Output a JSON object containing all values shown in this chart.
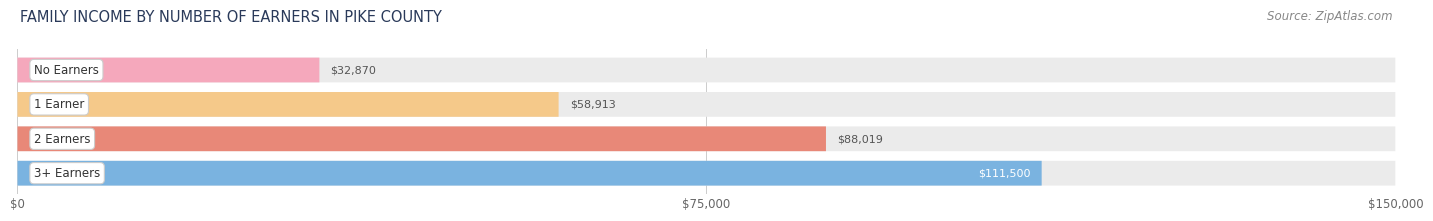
{
  "title": "FAMILY INCOME BY NUMBER OF EARNERS IN PIKE COUNTY",
  "source": "Source: ZipAtlas.com",
  "categories": [
    "No Earners",
    "1 Earner",
    "2 Earners",
    "3+ Earners"
  ],
  "values": [
    32870,
    58913,
    88019,
    111500
  ],
  "bar_colors": [
    "#f5a8bc",
    "#f5c98a",
    "#e88878",
    "#7ab3e0"
  ],
  "value_labels": [
    "$32,870",
    "$58,913",
    "$88,019",
    "$111,500"
  ],
  "value_label_colors": [
    "#555555",
    "#555555",
    "#555555",
    "#ffffff"
  ],
  "xlim": [
    0,
    150000
  ],
  "xticks": [
    0,
    75000,
    150000
  ],
  "xtick_labels": [
    "$0",
    "$75,000",
    "$150,000"
  ],
  "background_color": "#ffffff",
  "bar_background_color": "#ebebeb",
  "title_fontsize": 10.5,
  "source_fontsize": 8.5,
  "bar_height": 0.72
}
